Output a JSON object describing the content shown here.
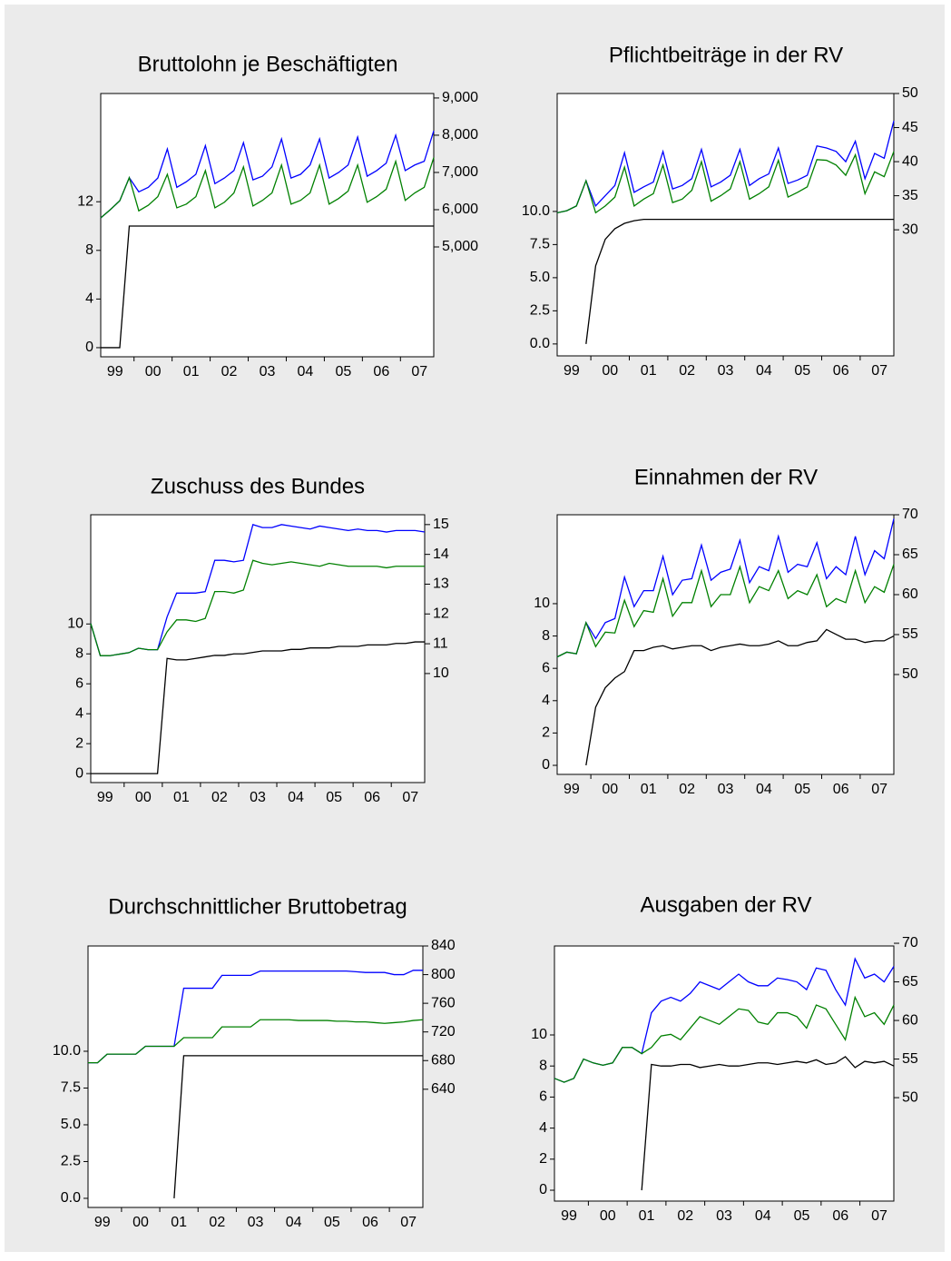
{
  "chart_data": [
    {
      "type": "line",
      "title": "Bruttolohn je Beschäftigten",
      "categories": [
        null,
        "99",
        null,
        null,
        null,
        "00",
        null,
        null,
        null,
        "01",
        null,
        null,
        null,
        "02",
        null,
        null,
        null,
        "03",
        null,
        null,
        null,
        "04",
        null,
        null,
        null,
        "05",
        null,
        null,
        null,
        "06",
        null,
        null,
        null,
        "07",
        null,
        null
      ],
      "ylim": [
        -0.75,
        20.9
      ],
      "yticks": [
        0,
        4,
        8,
        12
      ],
      "y2lim": [
        2050,
        9120
      ],
      "y2ticks": [
        {
          "value": 5000,
          "label": "5,000"
        },
        {
          "value": 6000,
          "label": "6,000"
        },
        {
          "value": 7000,
          "label": "7,000"
        },
        {
          "value": 8000,
          "label": "8,000"
        },
        {
          "value": 9000,
          "label": "9,000"
        }
      ],
      "series": [
        {
          "color": "#000000",
          "values": [
            0,
            0,
            0,
            10,
            10,
            10,
            10,
            10,
            10,
            10,
            10,
            10,
            10,
            10,
            10,
            10,
            10,
            10,
            10,
            10,
            10,
            10,
            10,
            10,
            10,
            10,
            10,
            10,
            10,
            10,
            10,
            10,
            10,
            10,
            10,
            10
          ]
        },
        {
          "color": "#0000ff",
          "axis": "y2",
          "values": [
            5780,
            6000,
            6240,
            6860,
            6480,
            6600,
            6850,
            7630,
            6600,
            6750,
            6950,
            7720,
            6700,
            6850,
            7050,
            7800,
            6800,
            6900,
            7150,
            7900,
            6850,
            6950,
            7200,
            7900,
            6850,
            7000,
            7200,
            7950,
            6900,
            7050,
            7250,
            8000,
            7050,
            7200,
            7300,
            8120
          ]
        },
        {
          "color": "#008000",
          "axis": "y2",
          "values": [
            5780,
            6000,
            6240,
            6860,
            5970,
            6120,
            6350,
            6950,
            6050,
            6150,
            6350,
            7050,
            6050,
            6200,
            6450,
            7150,
            6100,
            6250,
            6450,
            7200,
            6150,
            6250,
            6450,
            7200,
            6150,
            6300,
            6500,
            7200,
            6200,
            6350,
            6550,
            7300,
            6250,
            6450,
            6600,
            7400
          ]
        }
      ]
    },
    {
      "type": "line",
      "title": "Pflichtbeiträge in der RV",
      "categories": [
        null,
        "99",
        null,
        null,
        null,
        "00",
        null,
        null,
        null,
        "01",
        null,
        null,
        null,
        "02",
        null,
        null,
        null,
        "03",
        null,
        null,
        null,
        "04",
        null,
        null,
        null,
        "05",
        null,
        null,
        null,
        "06",
        null,
        null,
        null,
        "07",
        null,
        null
      ],
      "ylim": [
        -0.9,
        18.9
      ],
      "yticks": [
        {
          "value": 0,
          "label": "0.0"
        },
        2.5,
        {
          "value": 5,
          "label": "5.0"
        },
        7.5,
        {
          "value": 10,
          "label": "10.0"
        }
      ],
      "y2lim": [
        11.5,
        50
      ],
      "y2ticks": [
        30,
        35,
        40,
        45,
        50
      ],
      "series": [
        {
          "color": "#000000",
          "values": [
            null,
            null,
            null,
            0,
            5.9,
            7.9,
            8.7,
            9.1,
            9.3,
            9.4,
            9.4,
            9.4,
            9.4,
            9.4,
            9.4,
            9.4,
            9.4,
            9.4,
            9.4,
            9.4,
            9.4,
            9.4,
            9.4,
            9.4,
            9.4,
            9.4,
            9.4,
            9.4,
            9.4,
            9.4,
            9.4,
            9.4,
            9.4,
            9.4,
            9.4,
            9.4
          ]
        },
        {
          "color": "#0000ff",
          "axis": "y2",
          "values": [
            32.5,
            32.8,
            33.5,
            37.2,
            33.5,
            35.0,
            36.5,
            41.3,
            35.5,
            36.3,
            37.0,
            41.5,
            36.0,
            36.5,
            37.5,
            41.8,
            36.3,
            37.0,
            38.0,
            41.8,
            36.5,
            37.5,
            38.2,
            42.0,
            36.8,
            37.3,
            38.0,
            42.3,
            42.0,
            41.5,
            40.0,
            43.0,
            37.5,
            41.2,
            40.5,
            46.0
          ]
        },
        {
          "color": "#008000",
          "axis": "y2",
          "values": [
            32.5,
            32.8,
            33.5,
            37.2,
            32.5,
            33.5,
            34.8,
            39.2,
            33.5,
            34.5,
            35.3,
            39.5,
            34.0,
            34.5,
            35.8,
            40.0,
            34.2,
            35.0,
            36.0,
            40.0,
            34.5,
            35.3,
            36.3,
            40.2,
            34.8,
            35.5,
            36.3,
            40.3,
            40.2,
            39.5,
            38.0,
            41.0,
            35.3,
            38.5,
            37.8,
            41.5
          ]
        }
      ]
    },
    {
      "type": "line",
      "title": "Zuschuss des Bundes",
      "categories": [
        null,
        "99",
        null,
        null,
        null,
        "00",
        null,
        null,
        null,
        "01",
        null,
        null,
        null,
        "02",
        null,
        null,
        null,
        "03",
        null,
        null,
        null,
        "04",
        null,
        null,
        null,
        "05",
        null,
        null,
        null,
        "06",
        null,
        null,
        null,
        "07",
        null,
        null
      ],
      "ylim": [
        -0.6,
        17.3
      ],
      "yticks": [
        0,
        2,
        4,
        6,
        8,
        10
      ],
      "y2lim": [
        6.34,
        15.33
      ],
      "y2ticks": [
        10,
        11,
        12,
        13,
        14,
        15
      ],
      "series": [
        {
          "color": "#000000",
          "values": [
            0,
            0,
            0,
            0,
            0,
            0,
            0,
            0,
            7.7,
            7.6,
            7.6,
            7.7,
            7.8,
            7.9,
            7.9,
            8.0,
            8.0,
            8.1,
            8.2,
            8.2,
            8.2,
            8.3,
            8.3,
            8.4,
            8.4,
            8.4,
            8.5,
            8.5,
            8.5,
            8.6,
            8.6,
            8.6,
            8.7,
            8.7,
            8.8,
            8.8
          ]
        },
        {
          "color": "#0000ff",
          "axis": "y2",
          "values": [
            11.68,
            10.6,
            10.6,
            10.65,
            10.7,
            10.85,
            10.8,
            10.8,
            11.9,
            12.7,
            12.7,
            12.7,
            12.75,
            13.8,
            13.8,
            13.75,
            13.8,
            15.0,
            14.9,
            14.9,
            15.0,
            14.95,
            14.9,
            14.85,
            14.95,
            14.9,
            14.85,
            14.8,
            14.85,
            14.8,
            14.8,
            14.75,
            14.8,
            14.8,
            14.8,
            14.75
          ]
        },
        {
          "color": "#008000",
          "axis": "y2",
          "values": [
            11.68,
            10.6,
            10.6,
            10.65,
            10.7,
            10.85,
            10.8,
            10.8,
            11.4,
            11.8,
            11.8,
            11.75,
            11.85,
            12.75,
            12.75,
            12.7,
            12.8,
            13.8,
            13.7,
            13.65,
            13.7,
            13.75,
            13.7,
            13.65,
            13.6,
            13.7,
            13.65,
            13.6,
            13.6,
            13.6,
            13.6,
            13.55,
            13.6,
            13.6,
            13.6,
            13.6
          ]
        }
      ]
    },
    {
      "type": "line",
      "title": "Einnahmen der RV",
      "categories": [
        null,
        "99",
        null,
        null,
        null,
        "00",
        null,
        null,
        null,
        "01",
        null,
        null,
        null,
        "02",
        null,
        null,
        null,
        "03",
        null,
        null,
        null,
        "04",
        null,
        null,
        null,
        "05",
        null,
        null,
        null,
        "06",
        null,
        null,
        null,
        "07",
        null,
        null
      ],
      "ylim": [
        -0.56,
        15.5
      ],
      "yticks": [
        0,
        2,
        4,
        6,
        8,
        10
      ],
      "y2lim": [
        37.5,
        70
      ],
      "y2ticks": [
        50,
        55,
        60,
        65,
        70
      ],
      "series": [
        {
          "color": "#000000",
          "values": [
            null,
            null,
            null,
            0,
            3.6,
            4.8,
            5.4,
            5.8,
            7.1,
            7.1,
            7.3,
            7.4,
            7.2,
            7.3,
            7.4,
            7.4,
            7.1,
            7.3,
            7.4,
            7.5,
            7.4,
            7.4,
            7.5,
            7.7,
            7.4,
            7.4,
            7.6,
            7.7,
            8.4,
            8.1,
            7.8,
            7.8,
            7.6,
            7.7,
            7.7,
            8.0
          ]
        },
        {
          "color": "#0000ff",
          "axis": "y2",
          "values": [
            52.2,
            52.8,
            52.6,
            56.5,
            54.5,
            56.5,
            57.0,
            62.2,
            58.5,
            60.5,
            60.5,
            64.8,
            60.0,
            61.8,
            62.0,
            66.2,
            61.8,
            62.8,
            63.2,
            66.8,
            61.5,
            63.5,
            63.0,
            67.3,
            62.8,
            63.8,
            63.5,
            66.5,
            62.0,
            63.5,
            62.5,
            67.3,
            62.5,
            65.5,
            64.5,
            69.5
          ]
        },
        {
          "color": "#008000",
          "axis": "y2",
          "values": [
            52.2,
            52.8,
            52.6,
            56.5,
            53.5,
            55.3,
            55.2,
            59.3,
            56.0,
            58.0,
            57.8,
            62.0,
            57.3,
            59.0,
            59.0,
            63.0,
            58.5,
            60.0,
            60.0,
            63.5,
            59.0,
            61.0,
            60.5,
            63.0,
            59.5,
            60.5,
            60.0,
            62.5,
            58.5,
            59.5,
            59.0,
            63.0,
            59.0,
            61.0,
            60.3,
            63.8
          ]
        }
      ]
    },
    {
      "type": "line",
      "title": "Durchschnittlicher  Bruttobetrag",
      "categories": [
        null,
        "99",
        null,
        null,
        null,
        "00",
        null,
        null,
        null,
        "01",
        null,
        null,
        null,
        "02",
        null,
        null,
        null,
        "03",
        null,
        null,
        null,
        "04",
        null,
        null,
        null,
        "05",
        null,
        null,
        null,
        "06",
        null,
        null,
        null,
        "07",
        null,
        null
      ],
      "ylim": [
        -0.62,
        17.16
      ],
      "yticks": [
        {
          "value": 0,
          "label": "0.0"
        },
        2.5,
        {
          "value": 5,
          "label": "5.0"
        },
        7.5,
        {
          "value": 10,
          "label": "10.0"
        }
      ],
      "y2lim": [
        475,
        840
      ],
      "y2ticks": [
        640,
        680,
        720,
        760,
        800,
        840
      ],
      "series": [
        {
          "color": "#000000",
          "values": [
            null,
            null,
            null,
            null,
            null,
            null,
            null,
            null,
            null,
            0,
            9.7,
            9.7,
            9.7,
            9.7,
            9.7,
            9.7,
            9.7,
            9.7,
            9.7,
            9.7,
            9.7,
            9.7,
            9.7,
            9.7,
            9.7,
            9.7,
            9.7,
            9.7,
            9.7,
            9.7,
            9.7,
            9.7,
            9.7,
            9.7,
            9.7,
            9.7
          ]
        },
        {
          "color": "#0000ff",
          "axis": "y2",
          "values": [
            677,
            677,
            689,
            689,
            689,
            689,
            700,
            700,
            700,
            700,
            781,
            781,
            781,
            781,
            799,
            799,
            799,
            799,
            805,
            805,
            805,
            805,
            805,
            805,
            805,
            805,
            805,
            805,
            804,
            803,
            803,
            803,
            800,
            800,
            806,
            806
          ]
        },
        {
          "color": "#008000",
          "axis": "y2",
          "values": [
            677,
            677,
            689,
            689,
            689,
            689,
            700,
            700,
            700,
            700,
            712,
            712,
            712,
            712,
            727,
            727,
            727,
            727,
            737,
            737,
            737,
            737,
            736,
            736,
            736,
            736,
            735,
            735,
            734,
            734,
            733,
            732,
            733,
            734,
            736,
            737
          ]
        }
      ]
    },
    {
      "type": "line",
      "title": "Ausgaben der RV",
      "categories": [
        null,
        "99",
        null,
        null,
        null,
        "00",
        null,
        null,
        null,
        "01",
        null,
        null,
        null,
        "02",
        null,
        null,
        null,
        "03",
        null,
        null,
        null,
        "04",
        null,
        null,
        null,
        "05",
        null,
        null,
        null,
        "06",
        null,
        null,
        null,
        "07",
        null,
        null
      ],
      "ylim": [
        -0.7,
        15.73
      ],
      "yticks": [
        0,
        2,
        4,
        6,
        8,
        10
      ],
      "y2lim": [
        36.6,
        69.65
      ],
      "y2ticks": [
        50,
        55,
        60,
        65,
        70
      ],
      "series": [
        {
          "color": "#000000",
          "values": [
            null,
            null,
            null,
            null,
            null,
            null,
            null,
            null,
            null,
            0,
            8.1,
            8.0,
            8.0,
            8.1,
            8.1,
            7.9,
            8.0,
            8.1,
            8.0,
            8.0,
            8.1,
            8.2,
            8.2,
            8.1,
            8.2,
            8.3,
            8.2,
            8.4,
            8.1,
            8.2,
            8.6,
            7.9,
            8.3,
            8.2,
            8.3,
            8.0
          ]
        },
        {
          "color": "#0000ff",
          "axis": "y2",
          "values": [
            52.5,
            52.0,
            52.5,
            55.0,
            54.5,
            54.2,
            54.5,
            56.5,
            56.5,
            55.7,
            61.0,
            62.5,
            63.0,
            62.5,
            63.5,
            65.0,
            64.5,
            64.0,
            65.0,
            66.0,
            65.0,
            64.5,
            64.5,
            65.5,
            65.3,
            65.0,
            64.0,
            66.8,
            66.5,
            64.0,
            62.0,
            68.0,
            65.5,
            66.0,
            65.0,
            67.0
          ]
        },
        {
          "color": "#008000",
          "axis": "y2",
          "values": [
            52.5,
            52.0,
            52.5,
            55.0,
            54.5,
            54.2,
            54.5,
            56.5,
            56.5,
            55.7,
            56.5,
            58.0,
            58.2,
            57.5,
            59.0,
            60.5,
            60.0,
            59.5,
            60.5,
            61.5,
            61.3,
            59.8,
            59.5,
            61.0,
            61.0,
            60.5,
            59.0,
            62.0,
            61.5,
            59.5,
            57.5,
            63.0,
            60.5,
            61.0,
            59.5,
            62.0
          ]
        }
      ]
    }
  ]
}
